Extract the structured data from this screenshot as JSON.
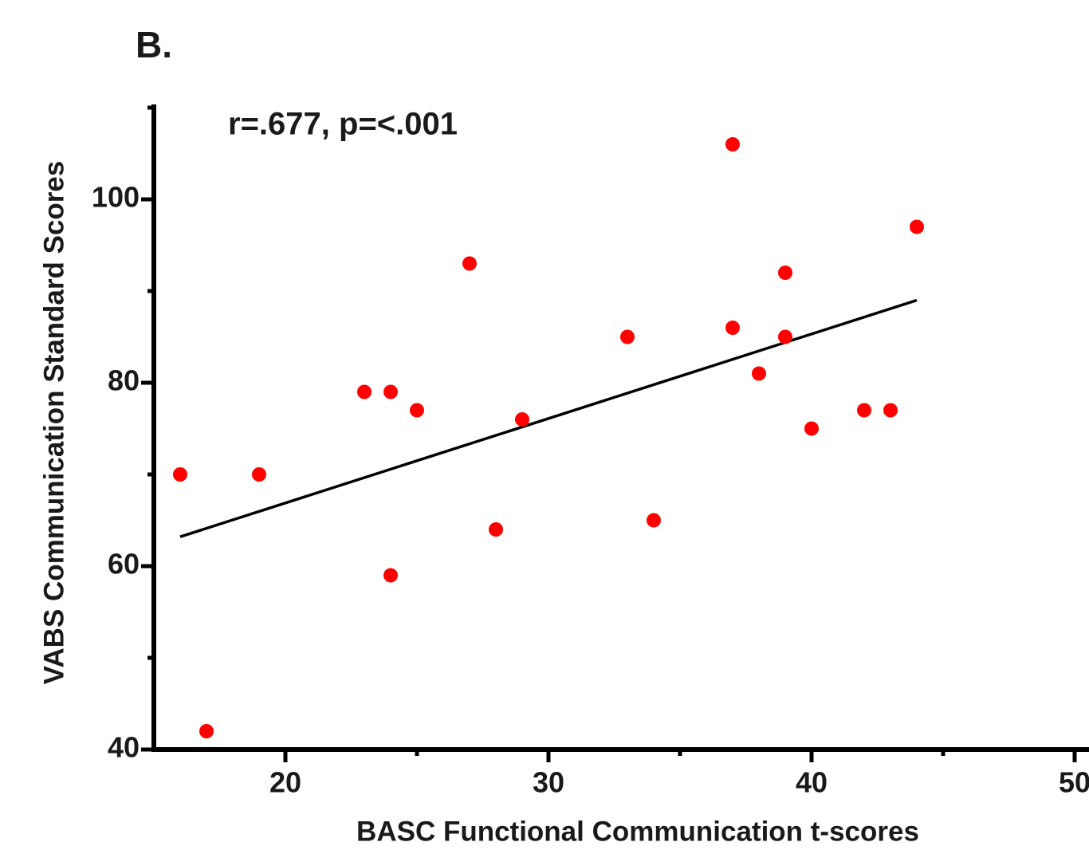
{
  "chart_data": {
    "type": "scatter",
    "panel_label": "B.",
    "annotation": "r=.677, p=<.001",
    "x_label": "BASC Functional Communication t-scores",
    "y_label": "VABS Communication Standard Scores",
    "x": [
      16,
      17,
      19,
      23,
      24,
      24,
      25,
      27,
      28,
      29,
      33,
      34,
      37,
      37,
      38,
      39,
      39,
      40,
      42,
      43,
      44
    ],
    "values": [
      70,
      42,
      70,
      79,
      79,
      59,
      77,
      93,
      64,
      76,
      85,
      65,
      106,
      86,
      81,
      92,
      85,
      75,
      77,
      77,
      97
    ],
    "color": "#ff0000",
    "trendline": {
      "x": [
        16,
        44
      ],
      "y": [
        63.2,
        89.0
      ],
      "color": "#000000"
    },
    "xlim": [
      15,
      50.5
    ],
    "xticks": [
      20,
      30,
      40,
      50
    ],
    "xminorticks": [
      25,
      35,
      45
    ],
    "ylim": [
      40,
      110
    ],
    "yticks": [
      40,
      60,
      80,
      100
    ],
    "yminorticks": [
      50,
      70,
      90,
      110
    ],
    "grid": false
  }
}
